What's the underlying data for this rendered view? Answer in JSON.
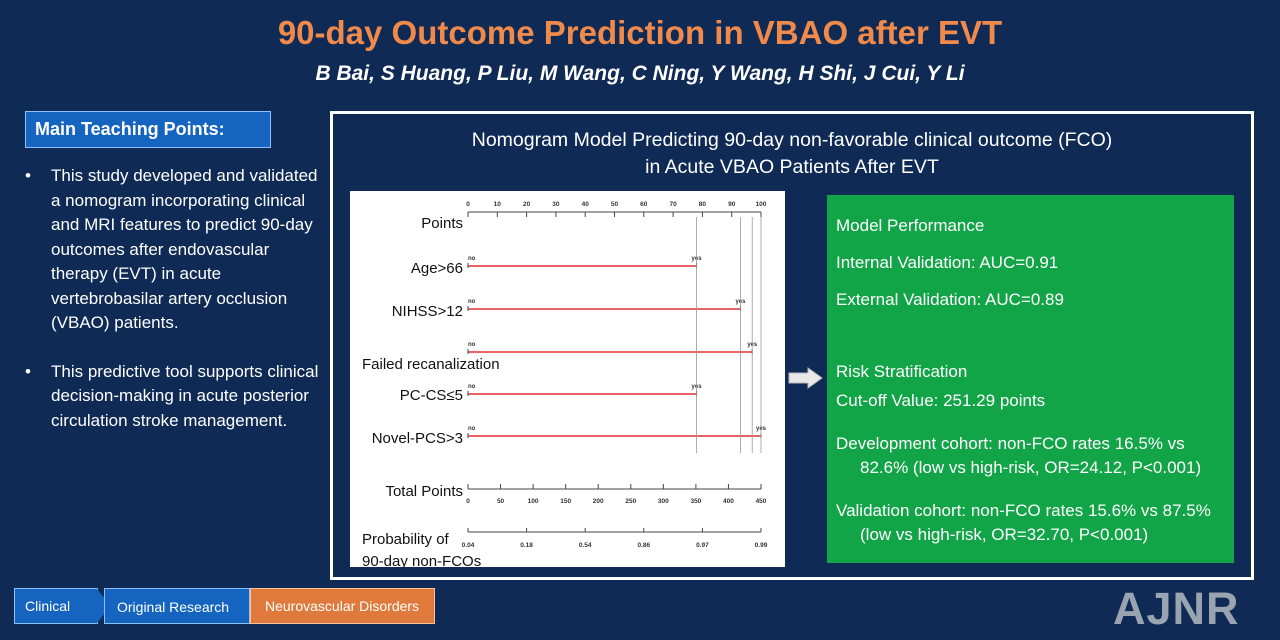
{
  "header": {
    "title": "90-day Outcome Prediction in VBAO after EVT",
    "authors": "B Bai, S Huang, P Liu, M Wang, C Ning, Y Wang, H Shi, J Cui, Y Li"
  },
  "teaching": {
    "label": "Main Teaching Points:",
    "points": [
      "This study developed and validated a nomogram incorporating clinical and MRI features to predict 90-day outcomes after endovascular therapy (EVT) in acute vertebrobasilar artery occlusion (VBAO) patients.",
      "This predictive tool supports clinical decision-making in acute posterior circulation stroke management."
    ]
  },
  "panel": {
    "title_line1": "Nomogram Model Predicting 90-day non-favorable clinical outcome (FCO)",
    "title_line2": "in Acute VBAO Patients After EVT"
  },
  "chart_data": {
    "type": "nomogram",
    "points_axis": {
      "label": "Points",
      "range": [
        0,
        100
      ],
      "ticks": [
        0,
        10,
        20,
        30,
        40,
        50,
        60,
        70,
        80,
        90,
        100
      ]
    },
    "variables": [
      {
        "label": "Age>66",
        "no_label": "no",
        "yes_label": "yes",
        "no_points": 0,
        "yes_points": 78
      },
      {
        "label": "NIHSS>12",
        "no_label": "no",
        "yes_label": "yes",
        "no_points": 0,
        "yes_points": 93
      },
      {
        "label": "Failed recanalization",
        "no_label": "no",
        "yes_label": "yes",
        "no_points": 0,
        "yes_points": 97
      },
      {
        "label": "PC-CS≤5",
        "no_label": "no",
        "yes_label": "yes",
        "no_points": 0,
        "yes_points": 78
      },
      {
        "label": "Novel-PCS>3",
        "no_label": "no",
        "yes_label": "yes",
        "no_points": 0,
        "yes_points": 100
      }
    ],
    "total_points_axis": {
      "label": "Total Points",
      "range": [
        0,
        450
      ],
      "ticks": [
        0,
        50,
        100,
        150,
        200,
        250,
        300,
        350,
        400,
        450
      ]
    },
    "probability_axis": {
      "label_line1": "Probability of",
      "label_line2": "90-day non-FCOs",
      "ticks": [
        {
          "label": "0.04",
          "total_points": 0
        },
        {
          "label": "0.18",
          "total_points": 90
        },
        {
          "label": "0.54",
          "total_points": 180
        },
        {
          "label": "0.86",
          "total_points": 270
        },
        {
          "label": "0.97",
          "total_points": 360
        },
        {
          "label": "0.99",
          "total_points": 450
        }
      ]
    }
  },
  "performance": {
    "heading": "Model Performance",
    "internal": "Internal Validation: AUC=0.91",
    "external": "External Validation: AUC=0.89",
    "risk_heading": "Risk Stratification",
    "cutoff": "Cut-off Value: 251.29 points",
    "development": "Development cohort: non-FCO rates 16.5% vs 82.6% (low vs high-risk, OR=24.12, P<0.001)",
    "validation": "Validation cohort: non-FCO rates 15.6% vs 87.5% (low vs high-risk, OR=32.70, P<0.001)"
  },
  "tags": {
    "clinical": "Clinical",
    "research": "Original Research",
    "neuro": "Neurovascular Disorders"
  },
  "logo": "AJNR",
  "colors": {
    "background": "#0e2a55",
    "title": "#f08a4b",
    "accent_blue": "#1565c0",
    "panel_green": "#12a547",
    "nomogram_line": "#e03030",
    "tag_orange": "#e07a3c"
  }
}
